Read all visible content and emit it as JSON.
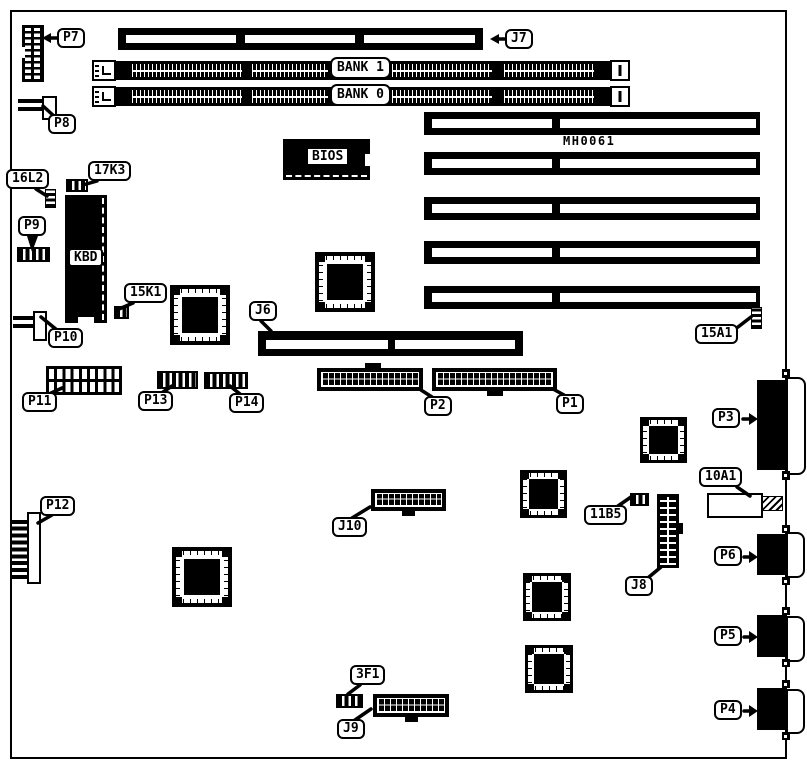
{
  "meta": {
    "description": "Motherboard component location diagram"
  },
  "board": {
    "code_text": "MH0061",
    "bios_text": "BIOS",
    "kbd_text": "KBD"
  },
  "callouts": [
    {
      "id": "p7",
      "text": "P7"
    },
    {
      "id": "j7",
      "text": "J7"
    },
    {
      "id": "bank1",
      "text": "BANK 1"
    },
    {
      "id": "bank0",
      "text": "BANK 0"
    },
    {
      "id": "p8",
      "text": "P8"
    },
    {
      "id": "16l2",
      "text": "16L2"
    },
    {
      "id": "17k3",
      "text": "17K3"
    },
    {
      "id": "p9",
      "text": "P9"
    },
    {
      "id": "15k1",
      "text": "15K1"
    },
    {
      "id": "p10",
      "text": "P10"
    },
    {
      "id": "j6",
      "text": "J6"
    },
    {
      "id": "15a1",
      "text": "15A1"
    },
    {
      "id": "p11",
      "text": "P11"
    },
    {
      "id": "p13",
      "text": "P13"
    },
    {
      "id": "p14",
      "text": "P14"
    },
    {
      "id": "p2",
      "text": "P2"
    },
    {
      "id": "p1",
      "text": "P1"
    },
    {
      "id": "p3",
      "text": "P3"
    },
    {
      "id": "10a1",
      "text": "10A1"
    },
    {
      "id": "j10",
      "text": "J10"
    },
    {
      "id": "11b5",
      "text": "11B5"
    },
    {
      "id": "j8",
      "text": "J8"
    },
    {
      "id": "p12",
      "text": "P12"
    },
    {
      "id": "3f1",
      "text": "3F1"
    },
    {
      "id": "j9",
      "text": "J9"
    },
    {
      "id": "p6",
      "text": "P6"
    },
    {
      "id": "p5",
      "text": "P5"
    },
    {
      "id": "p4",
      "text": "P4"
    }
  ],
  "colors": {
    "ink": "#000000",
    "paper": "#ffffff"
  }
}
